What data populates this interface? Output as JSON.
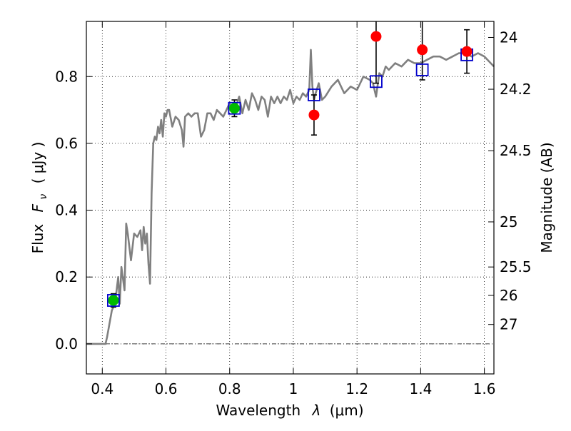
{
  "chart_data": {
    "type": "scatter",
    "xlabel_prefix": "Wavelength",
    "xlabel_symbol": "λ",
    "xlabel_unit": "(μm)",
    "ylabel_prefix": "Flux",
    "ylabel_symbol": "F",
    "ylabel_subscript": "ν",
    "ylabel_unit": "( μJy )",
    "y2label": "Magnitude (AB)",
    "xlim": [
      0.35,
      1.63
    ],
    "ylim": [
      -0.09,
      0.965
    ],
    "x_ticks": [
      {
        "value": 0.4,
        "label": "0.4"
      },
      {
        "value": 0.6,
        "label": "0.6"
      },
      {
        "value": 0.8,
        "label": "0.8"
      },
      {
        "value": 1.0,
        "label": "1"
      },
      {
        "value": 1.2,
        "label": "1.2"
      },
      {
        "value": 1.4,
        "label": "1.4"
      },
      {
        "value": 1.6,
        "label": "1.6"
      }
    ],
    "y_ticks": [
      {
        "value": 0.0,
        "label": "0.0"
      },
      {
        "value": 0.2,
        "label": "0.2"
      },
      {
        "value": 0.4,
        "label": "0.4"
      },
      {
        "value": 0.6,
        "label": "0.6"
      },
      {
        "value": 0.8,
        "label": "0.8"
      }
    ],
    "magnitude_ticks": [
      {
        "label": "24",
        "flux": 0.917
      },
      {
        "label": "24.2",
        "flux": 0.762
      },
      {
        "label": "24.5",
        "flux": 0.578
      },
      {
        "label": "25",
        "flux": 0.365
      },
      {
        "label": "25.5",
        "flux": 0.23
      },
      {
        "label": "26",
        "flux": 0.145
      },
      {
        "label": "27",
        "flux": 0.058
      }
    ],
    "grid": true,
    "colors": {
      "model": "#808080",
      "model_photometry": "#0000cc",
      "detection": "#00bb00",
      "measurement": "#ff0000",
      "errorbar": "#000000"
    },
    "series": [
      {
        "kind": "line",
        "role": "model",
        "x": [
          0.35,
          0.4,
          0.41,
          0.415,
          0.43,
          0.44,
          0.45,
          0.455,
          0.46,
          0.47,
          0.475,
          0.48,
          0.49,
          0.5,
          0.51,
          0.52,
          0.525,
          0.53,
          0.535,
          0.54,
          0.545,
          0.55,
          0.555,
          0.56,
          0.565,
          0.57,
          0.575,
          0.58,
          0.585,
          0.59,
          0.595,
          0.6,
          0.605,
          0.61,
          0.62,
          0.63,
          0.64,
          0.65,
          0.655,
          0.66,
          0.67,
          0.68,
          0.69,
          0.7,
          0.71,
          0.72,
          0.73,
          0.74,
          0.75,
          0.76,
          0.77,
          0.78,
          0.79,
          0.8,
          0.81,
          0.82,
          0.83,
          0.84,
          0.85,
          0.86,
          0.87,
          0.88,
          0.89,
          0.9,
          0.91,
          0.92,
          0.93,
          0.94,
          0.95,
          0.96,
          0.97,
          0.98,
          0.99,
          1.0,
          1.01,
          1.02,
          1.03,
          1.04,
          1.05,
          1.055,
          1.06,
          1.065,
          1.07,
          1.08,
          1.09,
          1.1,
          1.12,
          1.14,
          1.16,
          1.18,
          1.2,
          1.22,
          1.24,
          1.25,
          1.26,
          1.27,
          1.28,
          1.29,
          1.3,
          1.32,
          1.34,
          1.36,
          1.38,
          1.4,
          1.42,
          1.44,
          1.46,
          1.48,
          1.5,
          1.52,
          1.54,
          1.56,
          1.58,
          1.6,
          1.62,
          1.63
        ],
        "y": [
          0.0,
          0.0,
          0.0,
          0.02,
          0.1,
          0.12,
          0.2,
          0.12,
          0.23,
          0.16,
          0.36,
          0.33,
          0.25,
          0.33,
          0.32,
          0.34,
          0.28,
          0.35,
          0.3,
          0.33,
          0.24,
          0.18,
          0.45,
          0.6,
          0.62,
          0.61,
          0.65,
          0.63,
          0.67,
          0.62,
          0.69,
          0.68,
          0.7,
          0.7,
          0.65,
          0.68,
          0.67,
          0.64,
          0.59,
          0.68,
          0.69,
          0.68,
          0.69,
          0.69,
          0.62,
          0.64,
          0.69,
          0.69,
          0.67,
          0.7,
          0.69,
          0.68,
          0.7,
          0.72,
          0.69,
          0.71,
          0.74,
          0.69,
          0.73,
          0.7,
          0.75,
          0.73,
          0.7,
          0.74,
          0.73,
          0.68,
          0.74,
          0.72,
          0.74,
          0.72,
          0.74,
          0.73,
          0.76,
          0.72,
          0.74,
          0.73,
          0.75,
          0.74,
          0.76,
          0.88,
          0.77,
          0.73,
          0.75,
          0.78,
          0.73,
          0.74,
          0.77,
          0.79,
          0.75,
          0.77,
          0.76,
          0.8,
          0.79,
          0.78,
          0.74,
          0.81,
          0.8,
          0.83,
          0.82,
          0.84,
          0.83,
          0.85,
          0.84,
          0.84,
          0.85,
          0.86,
          0.86,
          0.85,
          0.86,
          0.87,
          0.87,
          0.86,
          0.87,
          0.86,
          0.84,
          0.83
        ]
      },
      {
        "kind": "markers",
        "role": "model_photometry",
        "marker": "open-square",
        "x": [
          0.435,
          0.815,
          1.065,
          1.26,
          1.405,
          1.545
        ],
        "y": [
          0.13,
          0.705,
          0.745,
          0.785,
          0.82,
          0.865
        ]
      },
      {
        "kind": "markers",
        "role": "detection",
        "marker": "filled-circle",
        "x": [
          0.435,
          0.815
        ],
        "y": [
          0.13,
          0.705
        ],
        "err": [
          0.02,
          0.025
        ]
      },
      {
        "kind": "markers",
        "role": "measurement",
        "marker": "filled-circle",
        "x": [
          1.065,
          1.26,
          1.405,
          1.545
        ],
        "y": [
          0.685,
          0.92,
          0.88,
          0.875
        ],
        "err": [
          0.06,
          0.14,
          0.09,
          0.065
        ]
      }
    ]
  }
}
